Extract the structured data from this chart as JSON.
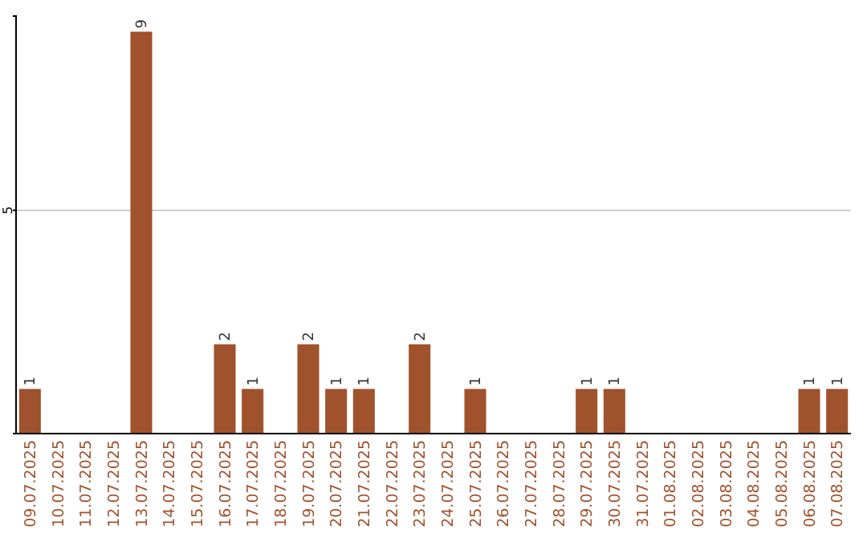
{
  "chart_data": {
    "type": "bar",
    "categories": [
      "09.07.2025",
      "10.07.2025",
      "11.07.2025",
      "12.07.2025",
      "13.07.2025",
      "14.07.2025",
      "15.07.2025",
      "16.07.2025",
      "17.07.2025",
      "18.07.2025",
      "19.07.2025",
      "20.07.2025",
      "21.07.2025",
      "22.07.2025",
      "23.07.2025",
      "24.07.2025",
      "25.07.2025",
      "26.07.2025",
      "27.07.2025",
      "28.07.2025",
      "29.07.2025",
      "30.07.2025",
      "31.07.2025",
      "01.08.2025",
      "02.08.2025",
      "03.08.2025",
      "04.08.2025",
      "05.08.2025",
      "06.08.2025",
      "07.08.2025"
    ],
    "values": [
      1,
      0,
      0,
      0,
      9,
      0,
      0,
      2,
      1,
      0,
      2,
      1,
      1,
      0,
      2,
      0,
      1,
      0,
      0,
      0,
      1,
      1,
      0,
      0,
      0,
      0,
      0,
      0,
      1,
      1
    ],
    "value_labels": [
      "1",
      null,
      null,
      null,
      "9",
      null,
      null,
      "2",
      "1",
      null,
      "2",
      "1",
      "1",
      null,
      "2",
      null,
      "1",
      null,
      null,
      null,
      "1",
      "1",
      null,
      null,
      null,
      null,
      null,
      null,
      "1",
      "1"
    ],
    "color": "#a0522d",
    "ylim": [
      0,
      9.35
    ],
    "yticks": [
      5
    ],
    "grid": "y"
  }
}
